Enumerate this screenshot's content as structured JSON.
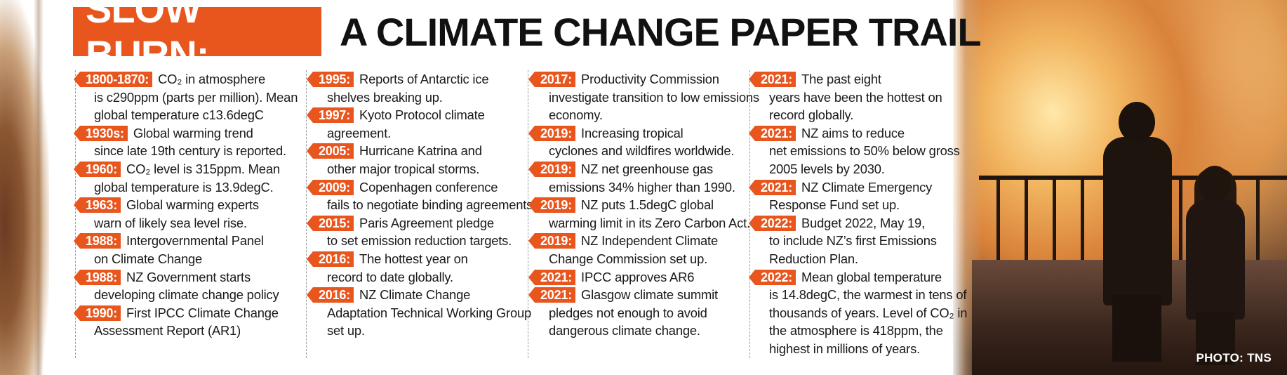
{
  "header": {
    "badge": "SLOW BURN:",
    "title": "A CLIMATE CHANGE PAPER TRAIL"
  },
  "photo_credit": "PHOTO: TNS",
  "columns": [
    [
      {
        "tag": "1800-1870:",
        "line1": "CO₂ in atmosphere",
        "rest": "is c290ppm (parts per million). Mean global temperature c13.6degC"
      },
      {
        "tag": "1930s:",
        "line1": "Global warming trend",
        "rest": "since late 19th century is reported."
      },
      {
        "tag": "1960:",
        "line1": "CO₂ level is 315ppm. Mean",
        "rest": "global temperature is 13.9degC."
      },
      {
        "tag": "1963:",
        "line1": "Global warming experts",
        "rest": "warn of likely sea level rise."
      },
      {
        "tag": "1988:",
        "line1": "Intergovernmental Panel",
        "rest": "on Climate Change"
      },
      {
        "tag": "1988:",
        "line1": "NZ Government starts",
        "rest": "developing climate change policy"
      },
      {
        "tag": "1990:",
        "line1": "First IPCC Climate Change",
        "rest": "Assessment Report (AR1)"
      }
    ],
    [
      {
        "tag": "1995:",
        "line1": "Reports of Antarctic ice",
        "rest": "shelves breaking up."
      },
      {
        "tag": "1997:",
        "line1": "Kyoto Protocol climate",
        "rest": "agreement."
      },
      {
        "tag": "2005:",
        "line1": "Hurricane Katrina and",
        "rest": "other major tropical storms."
      },
      {
        "tag": "2009:",
        "line1": "Copenhagen conference",
        "rest": "fails to negotiate binding agreements."
      },
      {
        "tag": "2015:",
        "line1": "Paris Agreement pledge",
        "rest": "to set emission reduction targets."
      },
      {
        "tag": "2016:",
        "line1": "The hottest year on",
        "rest": "record to date globally."
      },
      {
        "tag": "2016:",
        "line1": "NZ Climate Change",
        "rest": "Adaptation Technical Working Group set up."
      }
    ],
    [
      {
        "tag": "2017:",
        "line1": "Productivity Commission",
        "rest": "investigate transition to low emissions economy."
      },
      {
        "tag": "2019:",
        "line1": "Increasing tropical",
        "rest": "cyclones and wildfires worldwide."
      },
      {
        "tag": "2019:",
        "line1": "NZ net greenhouse gas",
        "rest": "emissions 34% higher than 1990."
      },
      {
        "tag": "2019:",
        "line1": "NZ puts 1.5degC global",
        "rest": "warming limit in its Zero Carbon Act."
      },
      {
        "tag": "2019:",
        "line1": "NZ Independent Climate",
        "rest": "Change Commission set up."
      },
      {
        "tag": "2021:",
        "line1": "IPCC approves AR6",
        "rest": ""
      },
      {
        "tag": "2021:",
        "line1": "Glasgow climate summit",
        "rest": "pledges not enough to avoid dangerous climate change."
      }
    ],
    [
      {
        "tag": "2021:",
        "line1": "The past eight",
        "rest": "years have been the hottest on record globally."
      },
      {
        "tag": "2021:",
        "line1": "NZ aims to reduce",
        "rest": "net emissions to 50% below gross 2005 levels by 2030."
      },
      {
        "tag": "2021:",
        "line1": "NZ Climate Emergency",
        "rest": "Response Fund set up."
      },
      {
        "tag": "2022:",
        "line1": "Budget 2022, May 19,",
        "rest": "to include NZ’s first Emissions Reduction Plan."
      },
      {
        "tag": "2022:",
        "line1": "Mean global temperature",
        "rest": "is 14.8degC, the warmest in tens of thousands of years. Level of CO₂ in the atmosphere is 418ppm, the highest in millions of years."
      }
    ]
  ],
  "colors": {
    "accent": "#e8561e",
    "text": "#1a1a1a"
  }
}
